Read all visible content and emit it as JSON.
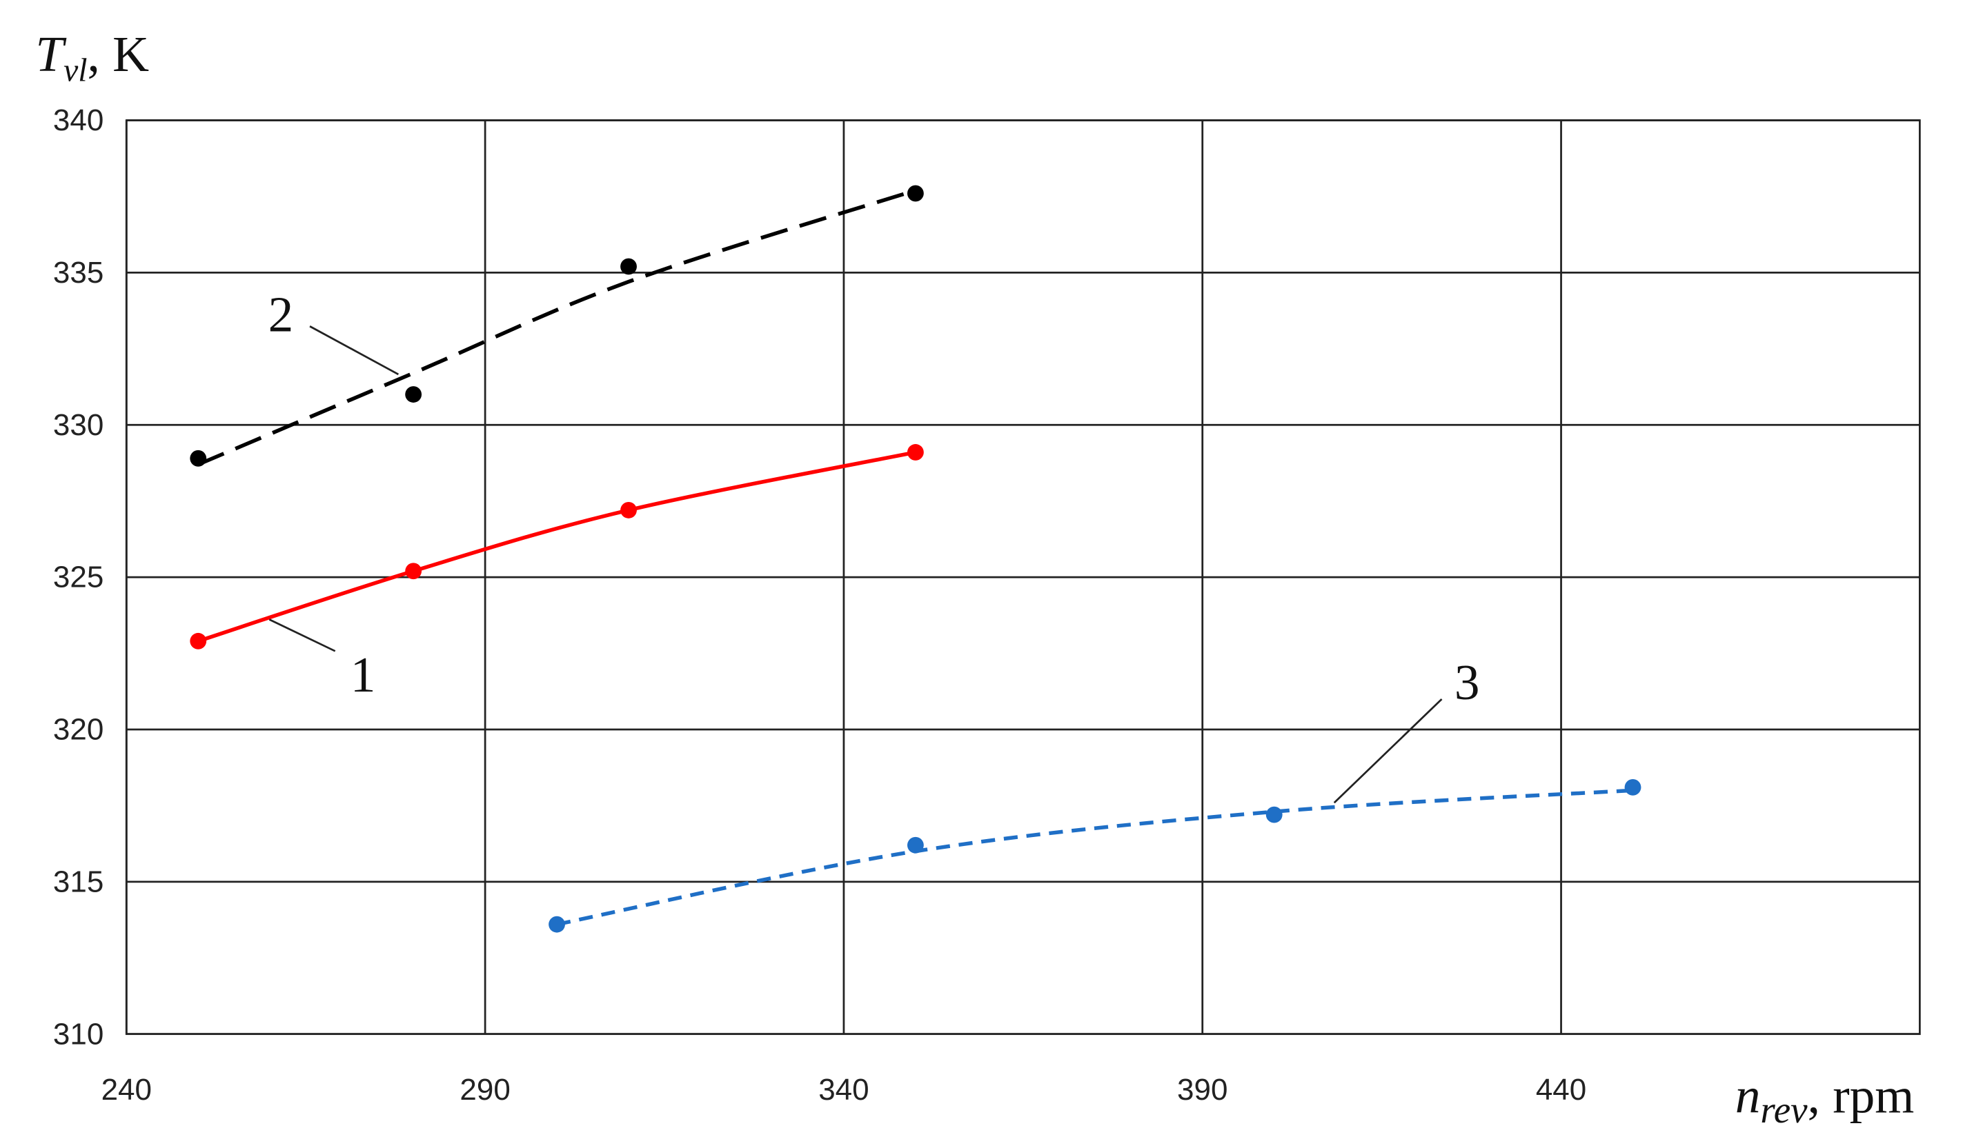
{
  "chart_data": {
    "type": "line",
    "x_label": {
      "main": "n",
      "sub": "rev",
      "rest": ", rpm"
    },
    "y_label": {
      "main": "T",
      "sub": "vl",
      "rest": ", K"
    },
    "xlim": [
      240,
      490
    ],
    "xticks": [
      240,
      290,
      340,
      390,
      440
    ],
    "ylim": [
      310,
      340
    ],
    "yticks": [
      310,
      315,
      320,
      325,
      330,
      335,
      340
    ],
    "grid": true,
    "series": [
      {
        "name": "1",
        "color": "#ff0000",
        "style": "solid",
        "x": [
          250,
          280,
          310,
          350
        ],
        "values": [
          322.9,
          325.2,
          327.2,
          329.1
        ],
        "trend": [
          322.9,
          325.2,
          327.2,
          329.1
        ]
      },
      {
        "name": "2",
        "color": "#000000",
        "style": "dashed",
        "x": [
          250,
          280,
          310,
          350
        ],
        "values": [
          328.9,
          331.0,
          335.2,
          337.6
        ],
        "trend": [
          328.7,
          331.7,
          334.7,
          337.7
        ]
      },
      {
        "name": "3",
        "color": "#1f6fc6",
        "style": "short-dashed",
        "x": [
          300,
          350,
          400,
          450
        ],
        "values": [
          313.6,
          316.2,
          317.2,
          318.1
        ],
        "trend": [
          313.6,
          316.0,
          317.3,
          318.0
        ]
      }
    ]
  }
}
